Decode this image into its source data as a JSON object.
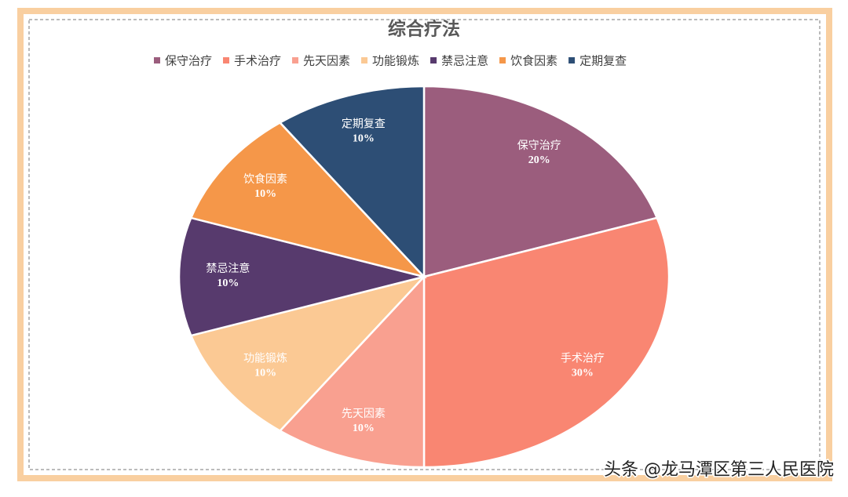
{
  "chart_data": {
    "type": "pie",
    "title": "综合疗法",
    "categories": [
      "保守治疗",
      "手术治疗",
      "先天因素",
      "功能锻炼",
      "禁忌注意",
      "饮食因素",
      "定期复查"
    ],
    "values": [
      20,
      30,
      10,
      10,
      10,
      10,
      10
    ],
    "value_labels": [
      "20%",
      "30%",
      "10%",
      "10%",
      "10%",
      "10%",
      "10%"
    ],
    "colors": [
      "#9b5d7d",
      "#f98672",
      "#f9a090",
      "#fbc994",
      "#573a6d",
      "#f59749",
      "#2d4e75"
    ],
    "legend": "top"
  },
  "watermark": "头条 @龙马潭区第三人民医院"
}
